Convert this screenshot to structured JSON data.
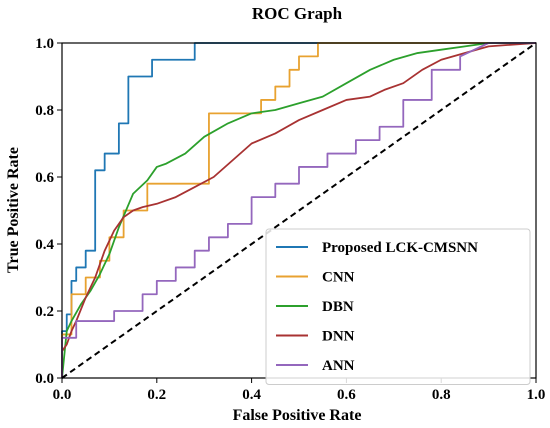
{
  "chart_data": {
    "type": "line",
    "title": "ROC Graph",
    "xlabel": "False Positive Rate",
    "ylabel": "True Positive Rate",
    "xlim": [
      0,
      1
    ],
    "ylim": [
      0,
      1
    ],
    "xticks": [
      "0.0",
      "0.2",
      "0.4",
      "0.6",
      "0.8",
      "1.0"
    ],
    "yticks": [
      "0.0",
      "0.2",
      "0.4",
      "0.6",
      "0.8",
      "1.0"
    ],
    "grid": false,
    "legend_position": "bottom-right",
    "reference_line": {
      "style": "dashed",
      "color": "#000000",
      "x": [
        0,
        1
      ],
      "y": [
        0,
        1
      ]
    },
    "series": [
      {
        "name": "Proposed LCK-CMSNN",
        "color": "#1f77b4",
        "x": [
          0,
          0,
          0.01,
          0.01,
          0.02,
          0.02,
          0.03,
          0.03,
          0.05,
          0.05,
          0.07,
          0.07,
          0.09,
          0.09,
          0.12,
          0.12,
          0.14,
          0.14,
          0.19,
          0.19,
          0.23,
          0.23,
          0.28,
          0.28,
          1.0
        ],
        "y": [
          0,
          0.14,
          0.14,
          0.19,
          0.19,
          0.29,
          0.29,
          0.33,
          0.33,
          0.38,
          0.38,
          0.62,
          0.62,
          0.67,
          0.67,
          0.76,
          0.76,
          0.9,
          0.9,
          0.95,
          0.95,
          0.95,
          0.95,
          1.0,
          1.0
        ]
      },
      {
        "name": "CNN",
        "color": "#e8a230",
        "x": [
          0,
          0,
          0.02,
          0.02,
          0.05,
          0.05,
          0.08,
          0.08,
          0.1,
          0.1,
          0.13,
          0.13,
          0.18,
          0.18,
          0.31,
          0.31,
          0.37,
          0.37,
          0.42,
          0.42,
          0.45,
          0.45,
          0.48,
          0.48,
          0.5,
          0.5,
          0.54,
          0.54,
          1.0
        ],
        "y": [
          0,
          0.13,
          0.13,
          0.25,
          0.25,
          0.3,
          0.3,
          0.35,
          0.35,
          0.42,
          0.42,
          0.5,
          0.5,
          0.58,
          0.58,
          0.79,
          0.79,
          0.79,
          0.79,
          0.83,
          0.83,
          0.87,
          0.87,
          0.92,
          0.92,
          0.96,
          0.96,
          1.0,
          1.0
        ]
      },
      {
        "name": "DBN",
        "color": "#2ca02c",
        "x": [
          0,
          0.01,
          0.02,
          0.04,
          0.06,
          0.08,
          0.1,
          0.12,
          0.15,
          0.18,
          0.2,
          0.22,
          0.26,
          0.3,
          0.35,
          0.4,
          0.45,
          0.5,
          0.55,
          0.6,
          0.65,
          0.7,
          0.75,
          0.8,
          0.85,
          0.9,
          1.0
        ],
        "y": [
          0,
          0.14,
          0.17,
          0.22,
          0.26,
          0.31,
          0.37,
          0.45,
          0.55,
          0.59,
          0.63,
          0.64,
          0.67,
          0.72,
          0.76,
          0.79,
          0.8,
          0.82,
          0.84,
          0.88,
          0.92,
          0.95,
          0.97,
          0.98,
          0.99,
          1.0,
          1.0
        ]
      },
      {
        "name": "DNN",
        "color": "#a83232",
        "x": [
          0,
          0,
          0.01,
          0.02,
          0.03,
          0.05,
          0.07,
          0.09,
          0.11,
          0.13,
          0.15,
          0.17,
          0.2,
          0.24,
          0.28,
          0.32,
          0.36,
          0.4,
          0.45,
          0.5,
          0.55,
          0.6,
          0.65,
          0.68,
          0.72,
          0.76,
          0.8,
          0.85,
          0.9,
          1.0
        ],
        "y": [
          0,
          0.08,
          0.1,
          0.14,
          0.17,
          0.24,
          0.3,
          0.38,
          0.44,
          0.48,
          0.5,
          0.51,
          0.52,
          0.54,
          0.57,
          0.6,
          0.65,
          0.7,
          0.73,
          0.77,
          0.8,
          0.83,
          0.84,
          0.86,
          0.88,
          0.92,
          0.95,
          0.97,
          0.99,
          1.0
        ]
      },
      {
        "name": "ANN",
        "color": "#9467bd",
        "x": [
          0,
          0,
          0.03,
          0.03,
          0.11,
          0.11,
          0.17,
          0.17,
          0.2,
          0.2,
          0.24,
          0.24,
          0.28,
          0.28,
          0.31,
          0.31,
          0.35,
          0.35,
          0.4,
          0.4,
          0.45,
          0.45,
          0.5,
          0.5,
          0.56,
          0.56,
          0.62,
          0.62,
          0.67,
          0.67,
          0.72,
          0.72,
          0.78,
          0.78,
          0.84,
          0.84,
          0.9,
          1.0
        ],
        "y": [
          0,
          0.12,
          0.12,
          0.17,
          0.17,
          0.2,
          0.2,
          0.25,
          0.25,
          0.29,
          0.29,
          0.33,
          0.33,
          0.38,
          0.38,
          0.42,
          0.42,
          0.46,
          0.46,
          0.54,
          0.54,
          0.58,
          0.58,
          0.63,
          0.63,
          0.67,
          0.67,
          0.71,
          0.71,
          0.75,
          0.75,
          0.83,
          0.83,
          0.92,
          0.92,
          0.96,
          1.0,
          1.0
        ]
      }
    ]
  }
}
